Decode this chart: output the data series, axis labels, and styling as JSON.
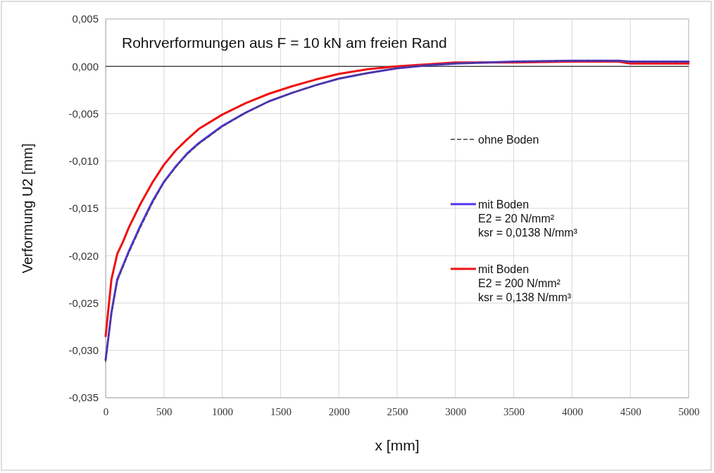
{
  "chart_data": {
    "type": "line",
    "title": "Rohrverformungen aus F = 10 kN am freien Rand",
    "xlabel": "x [mm]",
    "ylabel": "Verformung U2 [mm]",
    "x": [
      0,
      25,
      50,
      100,
      150,
      200,
      300,
      400,
      500,
      600,
      700,
      800,
      1000,
      1200,
      1400,
      1600,
      1800,
      2000,
      2250,
      2500,
      2750,
      3000,
      3500,
      4000,
      4400,
      4500,
      5000
    ],
    "series": [
      {
        "name": "ohne Boden",
        "color": "#404040",
        "line_style": "dashed",
        "values": [
          -0.0312,
          -0.0286,
          -0.0261,
          -0.0227,
          -0.0212,
          -0.0197,
          -0.017,
          -0.0145,
          -0.0123,
          -0.0107,
          -0.0093,
          -0.0082,
          -0.0064,
          -0.0049,
          -0.0037,
          -0.0028,
          -0.002,
          -0.0013,
          -0.0007,
          -0.0002,
          0.0001,
          0.0003,
          0.0005,
          0.0006,
          0.0006,
          0.0005,
          0.0005
        ]
      },
      {
        "name": "mit Boden\nE2 = 20 N/mm²\nksr = 0,0138 N/mm³",
        "color": "#5533ee",
        "line_style": "solid",
        "values": [
          -0.031,
          -0.0285,
          -0.026,
          -0.0225,
          -0.021,
          -0.0195,
          -0.0168,
          -0.0143,
          -0.0122,
          -0.0106,
          -0.0092,
          -0.0081,
          -0.0063,
          -0.0049,
          -0.0037,
          -0.0028,
          -0.002,
          -0.0013,
          -0.0007,
          -0.0002,
          0.0001,
          0.0003,
          0.0005,
          0.0006,
          0.0006,
          0.0005,
          0.0005
        ]
      },
      {
        "name": "mit Boden\nE2 = 200 N/mm²\nksr = 0,138 N/mm³",
        "color": "#ee1111",
        "line_style": "solid",
        "values": [
          -0.0285,
          -0.0255,
          -0.0225,
          -0.0198,
          -0.0185,
          -0.017,
          -0.0145,
          -0.0123,
          -0.0104,
          -0.0089,
          -0.0077,
          -0.0066,
          -0.0051,
          -0.0039,
          -0.0029,
          -0.0021,
          -0.0014,
          -0.0008,
          -0.0003,
          0,
          0.0002,
          0.0004,
          0.0004,
          0.0005,
          0.0005,
          0.0003,
          0.0003
        ]
      }
    ],
    "xlim": [
      0,
      5000
    ],
    "xticks": [
      0,
      500,
      1000,
      1500,
      2000,
      2500,
      3000,
      3500,
      4000,
      4500,
      5000
    ],
    "ylim": [
      -0.035,
      0.005
    ],
    "yticks": [
      {
        "value": 0.005,
        "label": "0,005"
      },
      {
        "value": 0,
        "label": "0,000"
      },
      {
        "value": -0.005,
        "label": "-0,005"
      },
      {
        "value": -0.01,
        "label": "-0,010"
      },
      {
        "value": -0.015,
        "label": "-0,015"
      },
      {
        "value": -0.02,
        "label": "-0,020"
      },
      {
        "value": -0.025,
        "label": "-0,025"
      },
      {
        "value": -0.03,
        "label": "-0,030"
      },
      {
        "value": -0.035,
        "label": "-0,035"
      }
    ],
    "ref_lines": [
      {
        "axis": "y",
        "value": 0,
        "color": "#000000"
      }
    ],
    "grid": true,
    "legend": "right",
    "marker": "none"
  }
}
